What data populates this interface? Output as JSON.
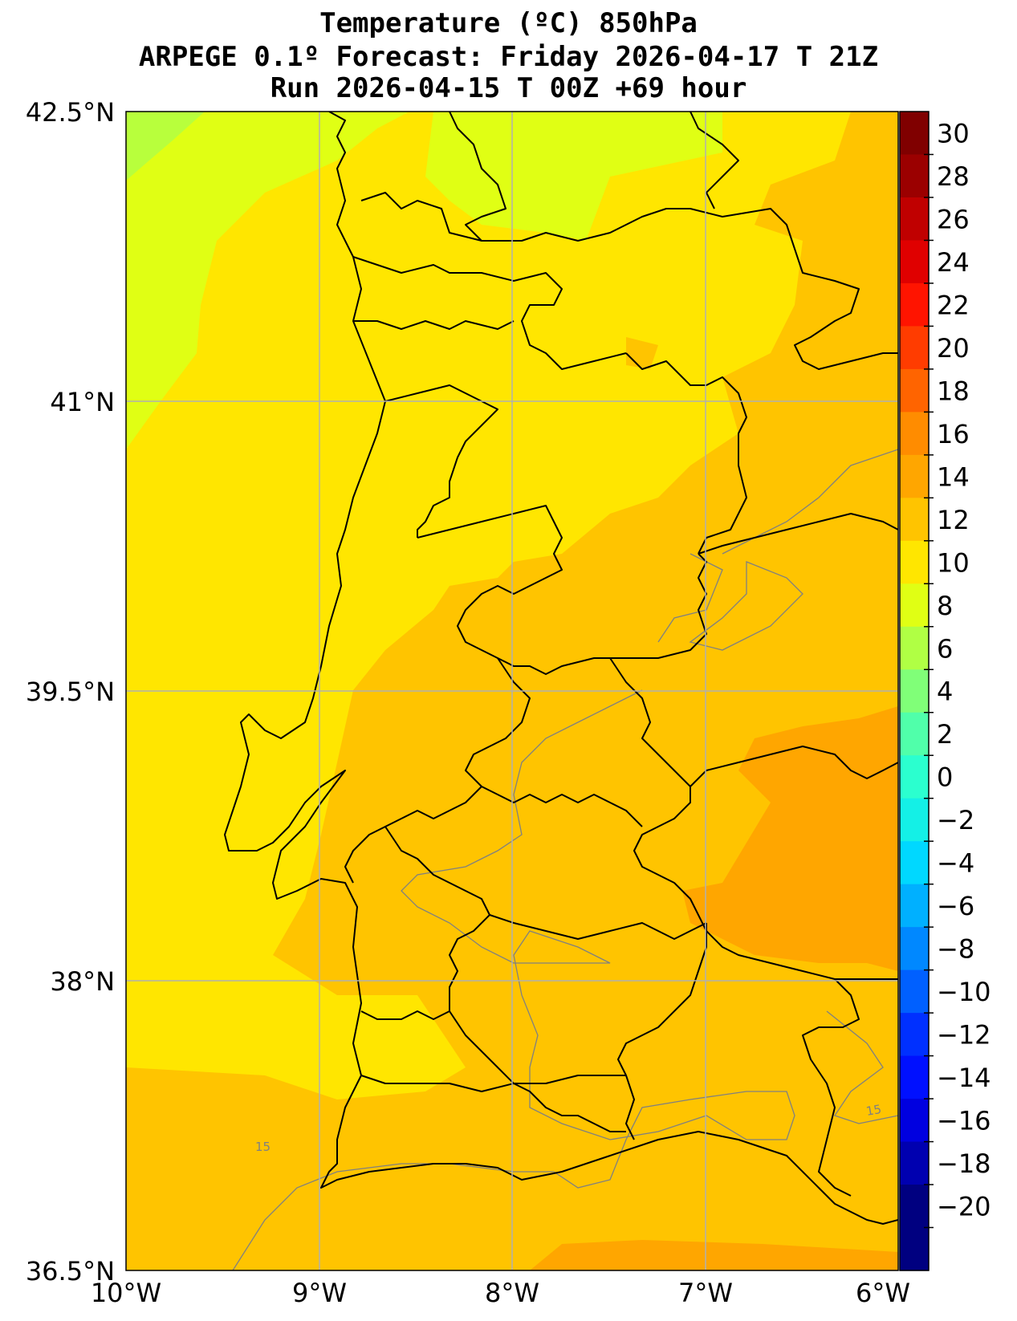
{
  "title": {
    "line1": "Temperature (ºC) 850hPa",
    "line2": "ARPEGE 0.1º Forecast: Friday 2026-04-17 T 21Z",
    "line3": "Run 2026-04-15 T 00Z +69 hour"
  },
  "axes": {
    "lat_labels": [
      "42.5°N",
      "41°N",
      "39.5°N",
      "38°N",
      "36.5°N"
    ],
    "lon_labels": [
      "10°W",
      "9°W",
      "8°W",
      "7°W",
      "6°W"
    ],
    "lat_range": [
      36.5,
      42.5
    ],
    "lon_range": [
      -10,
      -6
    ],
    "grid": true
  },
  "contour_labels": [
    "15",
    "15"
  ],
  "colorbar": {
    "labels": [
      "30",
      "28",
      "26",
      "24",
      "22",
      "20",
      "18",
      "16",
      "14",
      "12",
      "10",
      "8",
      "6",
      "4",
      "2",
      "0",
      "−2",
      "−4",
      "−6",
      "−8",
      "−10",
      "−12",
      "−14",
      "−16",
      "−18",
      "−20"
    ],
    "colors": [
      "#800000",
      "#9b0000",
      "#c00000",
      "#e00000",
      "#ff1400",
      "#ff3c00",
      "#ff6400",
      "#ff8c00",
      "#ffa600",
      "#ffc400",
      "#ffe600",
      "#e0ff14",
      "#b0ff44",
      "#80ff78",
      "#50ffaa",
      "#2bffcf",
      "#14f0e6",
      "#00d8ff",
      "#00b0ff",
      "#0088ff",
      "#0060ff",
      "#0030ff",
      "#0010ff",
      "#0000e0",
      "#0000b0",
      "#000080"
    ]
  },
  "field_colors": {
    "cool": "#b8ff3c",
    "t10_12": "#e0ff14",
    "t12_14": "#ffe600",
    "t14_16": "#ffc400",
    "t16_18": "#ffa600"
  }
}
